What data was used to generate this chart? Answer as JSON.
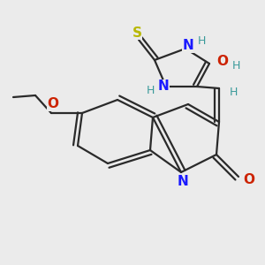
{
  "bg": "#ebebeb",
  "bc": "#2a2a2a",
  "lw": 1.6,
  "doff": 0.018,
  "colors": {
    "S": "#b8b800",
    "N": "#1a1aff",
    "O": "#cc2200",
    "H": "#3a9a9a",
    "C": "#2a2a2a"
  },
  "figsize": [
    3.0,
    3.0
  ],
  "dpi": 100,
  "xlim": [
    0,
    300
  ],
  "ylim": [
    0,
    300
  ]
}
